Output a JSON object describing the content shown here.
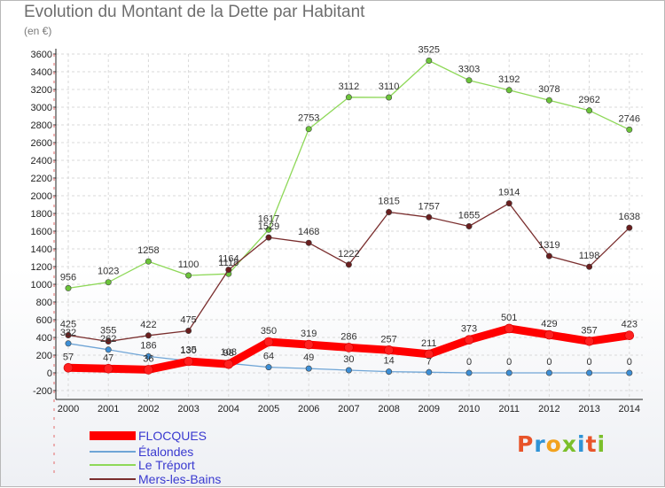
{
  "header": {
    "title": "Evolution du Montant de la Dette par Habitant",
    "subtitle": "(en €)"
  },
  "logo": {
    "text": "Proxiti",
    "colors": [
      "#e8542a",
      "#2f93d6",
      "#f2a21e",
      "#7bbf2a",
      "#2f93d6",
      "#e8542a",
      "#7bbf2a"
    ]
  },
  "chart_data": {
    "type": "line",
    "title": "Evolution du Montant de la Dette par Habitant",
    "subtitle": "(en €)",
    "xlabel": "",
    "ylabel": "",
    "x": [
      "2000",
      "2001",
      "2002",
      "2003",
      "2004",
      "2005",
      "2006",
      "2007",
      "2008",
      "2009",
      "2010",
      "2011",
      "2012",
      "2013",
      "2014"
    ],
    "ylim": [
      -200,
      3600
    ],
    "yticks": [
      -200,
      0,
      200,
      400,
      600,
      800,
      1000,
      1200,
      1400,
      1600,
      1800,
      2000,
      2200,
      2400,
      2600,
      2800,
      3000,
      3200,
      3400,
      3600
    ],
    "grid": true,
    "legend": "bottom-left",
    "series": [
      {
        "name": "FLOCQUES",
        "color": "#ff0000",
        "marker": "#ff2020",
        "width": 9,
        "values": [
          57,
          47,
          36,
          130,
          98,
          350,
          319,
          286,
          257,
          211,
          373,
          501,
          429,
          357,
          423
        ]
      },
      {
        "name": "Étalondes",
        "color": "#6fa5d6",
        "marker": "#3d8fd6",
        "width": 1.3,
        "values": [
          332,
          262,
          186,
          135,
          108,
          64,
          49,
          30,
          14,
          7,
          0,
          0,
          0,
          0,
          0
        ]
      },
      {
        "name": "Le Tréport",
        "color": "#8ed858",
        "marker": "#6cc43a",
        "width": 1.3,
        "values": [
          956,
          1023,
          1258,
          1100,
          1118,
          1617,
          2753,
          3112,
          3110,
          3525,
          3303,
          3192,
          3078,
          2962,
          2746
        ]
      },
      {
        "name": "Mers-les-Bains",
        "color": "#7a2e2e",
        "marker": "#6a1e1e",
        "width": 1.3,
        "values": [
          425,
          355,
          422,
          475,
          1164,
          1529,
          1468,
          1222,
          1815,
          1757,
          1655,
          1914,
          1319,
          1198,
          1638
        ]
      }
    ]
  }
}
